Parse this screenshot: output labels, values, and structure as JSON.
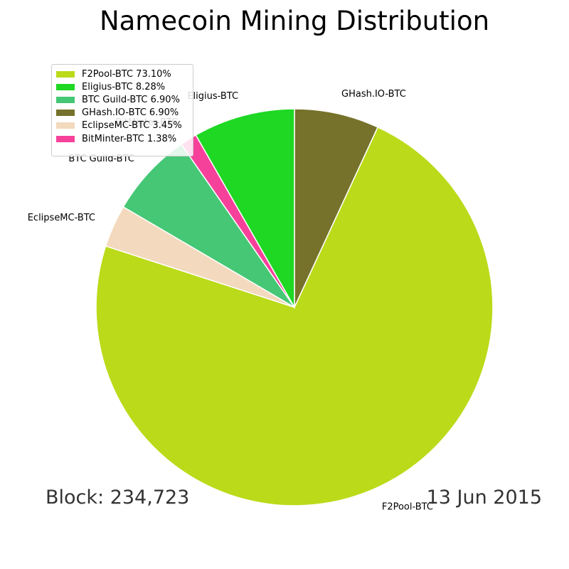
{
  "title": "Namecoin Mining Distribution",
  "footer": {
    "block": "Block: 234,723",
    "date": "13 Jun 2015"
  },
  "chart_data": {
    "type": "pie",
    "title": "Namecoin Mining Distribution",
    "start_angle_deg": 90,
    "direction": "clockwise",
    "legend_position": "upper-left",
    "slices": [
      {
        "label": "GHash.IO-BTC",
        "value": 6.9,
        "legend": "GHash.IO-BTC 6.90%",
        "color": "#76722b"
      },
      {
        "label": "F2Pool-BTC",
        "value": 73.1,
        "legend": "F2Pool-BTC 73.10%",
        "color": "#bbda19"
      },
      {
        "label": "EclipseMC-BTC",
        "value": 3.45,
        "legend": "EclipseMC-BTC 3.45%",
        "color": "#f3d9bd"
      },
      {
        "label": "BTC Guild-BTC",
        "value": 6.9,
        "legend": "BTC Guild-BTC 6.90%",
        "color": "#45c775"
      },
      {
        "label": "BitMinter-BTC",
        "value": 1.38,
        "legend": "BitMinter-BTC 1.38%",
        "color": "#f6419a"
      },
      {
        "label": "Eligius-BTC",
        "value": 8.28,
        "legend": "Eligius-BTC 8.28%",
        "color": "#1ed824"
      }
    ],
    "legend_order": [
      "F2Pool-BTC",
      "Eligius-BTC",
      "BTC Guild-BTC",
      "GHash.IO-BTC",
      "EclipseMC-BTC",
      "BitMinter-BTC"
    ]
  }
}
